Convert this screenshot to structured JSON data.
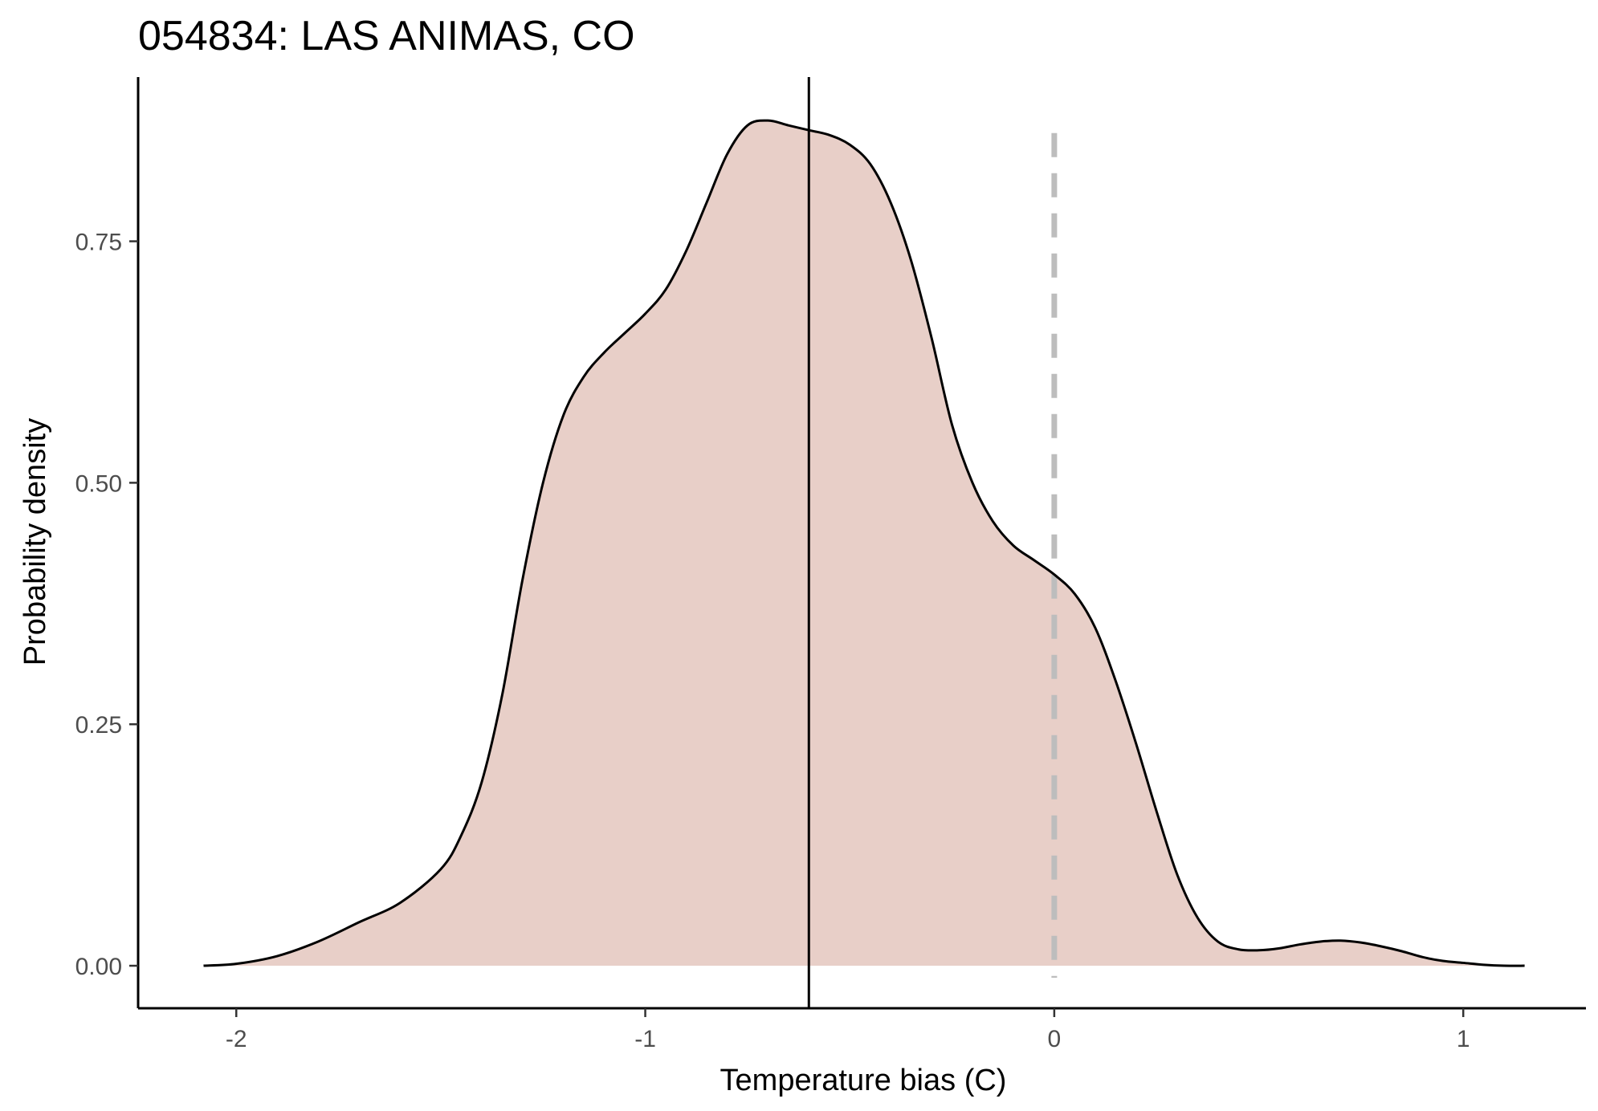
{
  "chart_data": {
    "type": "area",
    "title": "054834: LAS ANIMAS, CO",
    "xlabel": "Temperature bias (C)",
    "ylabel": "Probability density",
    "xlim": [
      -2.24,
      1.3
    ],
    "ylim": [
      -0.044,
      0.92
    ],
    "x_ticks": [
      -2,
      -1,
      0,
      1
    ],
    "x_tick_labels": [
      "-2",
      "-1",
      "0",
      "1"
    ],
    "y_ticks": [
      0,
      0.25,
      0.5,
      0.75
    ],
    "y_tick_labels": [
      "0.00",
      "0.25",
      "0.50",
      "0.75"
    ],
    "grid": false,
    "legend": "none",
    "fill_color": "#e8cfc8",
    "line_color": "#000000",
    "reference_lines": [
      {
        "x": -0.6,
        "style": "solid",
        "color": "#000000"
      },
      {
        "x": 0,
        "style": "dashed",
        "color": "#bdbdbd"
      }
    ],
    "series": [
      {
        "x": [
          -2.08,
          -2.0,
          -1.9,
          -1.8,
          -1.7,
          -1.6,
          -1.5,
          -1.45,
          -1.4,
          -1.35,
          -1.3,
          -1.25,
          -1.2,
          -1.15,
          -1.1,
          -1.05,
          -1.0,
          -0.95,
          -0.9,
          -0.85,
          -0.8,
          -0.75,
          -0.7,
          -0.65,
          -0.6,
          -0.55,
          -0.5,
          -0.45,
          -0.4,
          -0.35,
          -0.3,
          -0.25,
          -0.2,
          -0.15,
          -0.1,
          -0.05,
          0.0,
          0.05,
          0.1,
          0.15,
          0.2,
          0.25,
          0.3,
          0.35,
          0.4,
          0.45,
          0.5,
          0.55,
          0.6,
          0.65,
          0.7,
          0.75,
          0.8,
          0.85,
          0.9,
          0.95,
          1.0,
          1.05,
          1.1,
          1.15
        ],
        "y": [
          0.0,
          0.002,
          0.01,
          0.025,
          0.045,
          0.065,
          0.1,
          0.135,
          0.19,
          0.28,
          0.4,
          0.5,
          0.57,
          0.61,
          0.635,
          0.655,
          0.675,
          0.7,
          0.74,
          0.79,
          0.84,
          0.87,
          0.875,
          0.87,
          0.865,
          0.86,
          0.85,
          0.83,
          0.79,
          0.73,
          0.65,
          0.56,
          0.5,
          0.46,
          0.435,
          0.42,
          0.405,
          0.385,
          0.35,
          0.295,
          0.23,
          0.16,
          0.095,
          0.05,
          0.025,
          0.017,
          0.016,
          0.018,
          0.022,
          0.025,
          0.026,
          0.024,
          0.02,
          0.015,
          0.009,
          0.005,
          0.003,
          0.001,
          0.0,
          0.0
        ]
      }
    ]
  }
}
